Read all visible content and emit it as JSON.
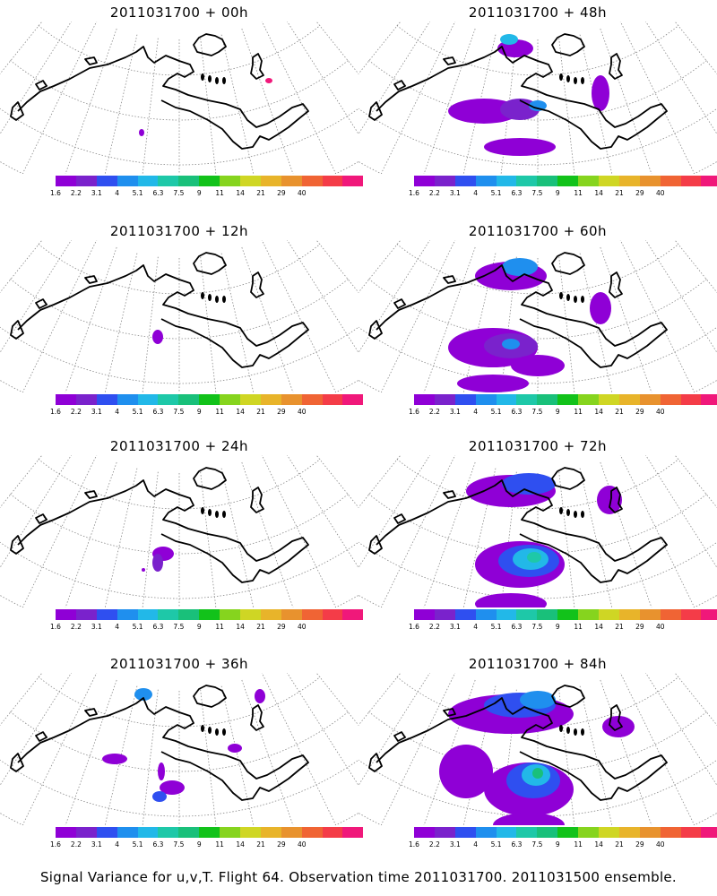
{
  "palette": [
    "#8f00d6",
    "#7a22cc",
    "#2f4ff0",
    "#1f8fee",
    "#22b8e8",
    "#1ec8a8",
    "#19c07a",
    "#12c21a",
    "#86d41e",
    "#cfd624",
    "#e8b42a",
    "#e8922e",
    "#f06434",
    "#f43c48",
    "#f0187a"
  ],
  "colorbar_labels": [
    "1.6",
    "2.2",
    "3.1",
    "4",
    "5.1",
    "6.3",
    "7.5",
    "9",
    "11",
    "14",
    "21",
    "29",
    "40"
  ],
  "caption": "Signal Variance for u,v,T. Flight 64. Observation time 2011031700. 2011031500 ensemble.",
  "panels": [
    {
      "id": "p00",
      "title": "2011031700 + 00h",
      "lead": "00h"
    },
    {
      "id": "p48",
      "title": "2011031700 + 48h",
      "lead": "48h"
    },
    {
      "id": "p12",
      "title": "2011031700 + 12h",
      "lead": "12h"
    },
    {
      "id": "p60",
      "title": "2011031700 + 60h",
      "lead": "60h"
    },
    {
      "id": "p24",
      "title": "2011031700 + 24h",
      "lead": "24h"
    },
    {
      "id": "p72",
      "title": "2011031700 + 72h",
      "lead": "72h"
    },
    {
      "id": "p36",
      "title": "2011031700 + 36h",
      "lead": "36h"
    },
    {
      "id": "p84",
      "title": "2011031700 + 84h",
      "lead": "84h"
    }
  ]
}
